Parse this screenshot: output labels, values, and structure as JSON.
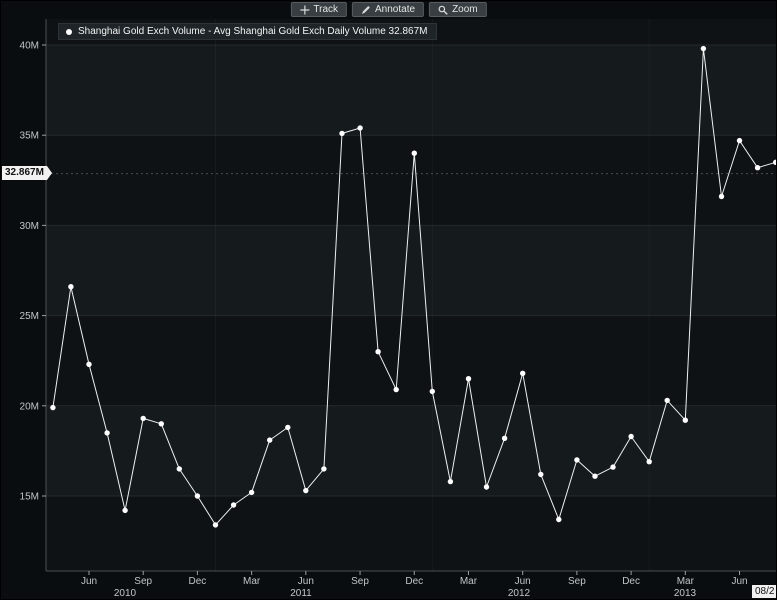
{
  "toolbar": {
    "track_label": "Track",
    "annotate_label": "Annotate",
    "zoom_label": "Zoom"
  },
  "chart_data": {
    "type": "line",
    "title": "Shanghai Gold Exch Volume - Avg Shanghai Gold Exch Daily Volume 32.867M",
    "series": [
      {
        "name": "Shanghai Gold Exch Volume",
        "x": [
          "2010-04",
          "2010-05",
          "2010-06",
          "2010-07",
          "2010-08",
          "2010-09",
          "2010-10",
          "2010-11",
          "2010-12",
          "2011-01",
          "2011-02",
          "2011-03",
          "2011-04",
          "2011-05",
          "2011-06",
          "2011-07",
          "2011-08",
          "2011-09",
          "2011-10",
          "2011-11",
          "2011-12",
          "2012-01",
          "2012-02",
          "2012-03",
          "2012-04",
          "2012-05",
          "2012-06",
          "2012-07",
          "2012-08",
          "2012-09",
          "2012-10",
          "2012-11",
          "2012-12",
          "2013-01",
          "2013-02",
          "2013-03",
          "2013-04",
          "2013-05",
          "2013-06",
          "2013-07",
          "2013-08"
        ],
        "values": [
          19.9,
          26.6,
          22.3,
          18.5,
          14.2,
          19.3,
          19.0,
          16.5,
          15.0,
          13.4,
          14.5,
          15.2,
          18.1,
          18.8,
          15.3,
          16.5,
          35.1,
          35.4,
          23.0,
          20.9,
          34.0,
          20.8,
          15.8,
          21.5,
          15.5,
          18.2,
          21.8,
          16.2,
          13.7,
          17.0,
          16.1,
          16.6,
          18.3,
          16.9,
          20.3,
          19.2,
          39.8,
          31.6,
          34.7,
          33.2,
          33.5
        ]
      }
    ],
    "average": {
      "value": 32.867,
      "label": "32.867M"
    },
    "ylim": [
      10.9,
      41.4
    ],
    "yticks": [
      40,
      35,
      30,
      25,
      20,
      15
    ],
    "ytick_labels": [
      "40M",
      "35M",
      "30M",
      "25M",
      "20M",
      "15M"
    ],
    "xtick_labels": [
      "Jun",
      "Sep",
      "Dec",
      "Mar",
      "Jun",
      "Sep",
      "Dec",
      "Mar",
      "Jun",
      "Sep",
      "Dec",
      "Mar",
      "Jun"
    ],
    "year_labels": [
      "2010",
      "2011",
      "2012",
      "2013"
    ],
    "end_axis_label": "08/2",
    "legend_position": "top-left",
    "grid": "horizontal-subtle-bands",
    "colors": {
      "line": "#eef1f1",
      "marker": "#ffffff",
      "band_light": "#151a1d",
      "band_dark": "#0e1214",
      "grid_line": "#23292d",
      "axis_line": "#4a5054",
      "axis_text": "#c2c6c8",
      "background": "#0a0d0f"
    }
  }
}
